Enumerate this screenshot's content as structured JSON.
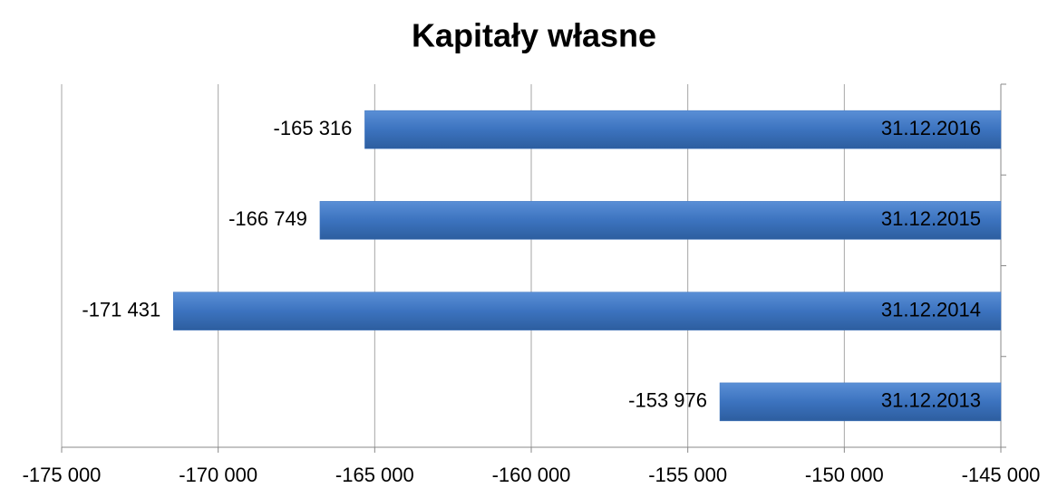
{
  "chart_data": {
    "type": "barh",
    "title": "Kapitały własne",
    "categories": [
      "31.12.2016",
      "31.12.2015",
      "31.12.2014",
      "31.12.2013"
    ],
    "values": [
      -165316,
      -166749,
      -171431,
      -153976
    ],
    "value_labels": [
      "-165 316",
      "-166 749",
      "-171 431",
      "-153 976"
    ],
    "color": "#3c73bf",
    "xlim": [
      -175000,
      -145000
    ],
    "xticks": [
      {
        "value": -175000,
        "label": "-175 000"
      },
      {
        "value": -170000,
        "label": "-170 000"
      },
      {
        "value": -165000,
        "label": "-165 000"
      },
      {
        "value": -160000,
        "label": "-160 000"
      },
      {
        "value": -155000,
        "label": "-155 000"
      },
      {
        "value": -150000,
        "label": "-150 000"
      },
      {
        "value": -145000,
        "label": "-145 000"
      }
    ],
    "grid": true
  }
}
